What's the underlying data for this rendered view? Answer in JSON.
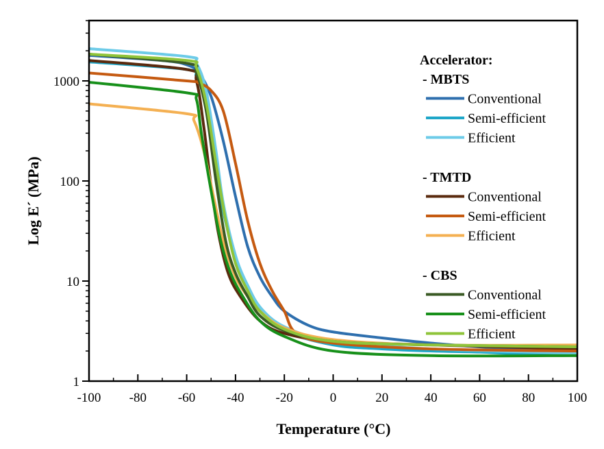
{
  "chart_data": {
    "type": "line",
    "title": "",
    "xlabel": "Temperature (°C)",
    "ylabel": "Log E´ (MPa)",
    "xlim": [
      -100,
      100
    ],
    "ylim": [
      1,
      4000
    ],
    "yscale": "log",
    "xticks": [
      -100,
      -80,
      -60,
      -40,
      -20,
      0,
      20,
      40,
      60,
      80,
      100
    ],
    "xtick_labels": [
      "-100",
      "-80",
      "-60",
      "-40",
      "-20",
      "0",
      "20",
      "40",
      "60",
      "80",
      "100"
    ],
    "yticks": [
      1,
      10,
      100,
      1000
    ],
    "ytick_labels": [
      "1",
      "10",
      "100",
      "1000"
    ],
    "grid": false,
    "legend_placement": "top-right",
    "legend_title": "Accelerator:",
    "groups": [
      {
        "label": "- MBTS",
        "series": [
          0,
          1,
          2
        ]
      },
      {
        "label": "- TMTD",
        "series": [
          3,
          4,
          5
        ]
      },
      {
        "label": "- CBS",
        "series": [
          6,
          7,
          8
        ]
      }
    ],
    "series": [
      {
        "name": "Conventional",
        "group": "MBTS",
        "color": "#2e6fae",
        "points": [
          [
            -100,
            1800
          ],
          [
            -70,
            1600
          ],
          [
            -60,
            1450
          ],
          [
            -55,
            1200
          ],
          [
            -50,
            700
          ],
          [
            -45,
            250
          ],
          [
            -40,
            70
          ],
          [
            -35,
            22
          ],
          [
            -30,
            11
          ],
          [
            -25,
            7
          ],
          [
            -20,
            5
          ],
          [
            -10,
            3.6
          ],
          [
            0,
            3.1
          ],
          [
            20,
            2.7
          ],
          [
            40,
            2.4
          ],
          [
            60,
            2.2
          ],
          [
            80,
            2.1
          ],
          [
            100,
            2.0
          ]
        ]
      },
      {
        "name": "Semi-efficient",
        "group": "MBTS",
        "color": "#1ea6c8",
        "points": [
          [
            -100,
            1550
          ],
          [
            -60,
            1300
          ],
          [
            -56,
            1100
          ],
          [
            -52,
            600
          ],
          [
            -48,
            150
          ],
          [
            -45,
            50
          ],
          [
            -40,
            17
          ],
          [
            -35,
            9
          ],
          [
            -30,
            5.5
          ],
          [
            -20,
            3.2
          ],
          [
            0,
            2.3
          ],
          [
            20,
            2.1
          ],
          [
            40,
            2.0
          ],
          [
            60,
            1.95
          ],
          [
            80,
            1.85
          ],
          [
            100,
            1.8
          ]
        ]
      },
      {
        "name": "Efficient",
        "group": "MBTS",
        "color": "#6dcbe8",
        "points": [
          [
            -100,
            2100
          ],
          [
            -60,
            1750
          ],
          [
            -56,
            1500
          ],
          [
            -52,
            800
          ],
          [
            -48,
            200
          ],
          [
            -45,
            60
          ],
          [
            -40,
            18
          ],
          [
            -35,
            9
          ],
          [
            -30,
            5.5
          ],
          [
            -20,
            3.5
          ],
          [
            0,
            2.5
          ],
          [
            40,
            2.1
          ],
          [
            100,
            1.9
          ]
        ]
      },
      {
        "name": "Conventional",
        "group": "TMTD",
        "color": "#5a2a0e",
        "points": [
          [
            -100,
            1600
          ],
          [
            -60,
            1300
          ],
          [
            -56,
            1000
          ],
          [
            -53,
            350
          ],
          [
            -50,
            90
          ],
          [
            -47,
            30
          ],
          [
            -43,
            12
          ],
          [
            -38,
            7
          ],
          [
            -30,
            4
          ],
          [
            -20,
            3
          ],
          [
            0,
            2.5
          ],
          [
            40,
            2.3
          ],
          [
            100,
            2.1
          ]
        ]
      },
      {
        "name": "Semi-efficient",
        "group": "TMTD",
        "color": "#c55a11",
        "points": [
          [
            -100,
            1200
          ],
          [
            -60,
            1000
          ],
          [
            -55,
            950
          ],
          [
            -50,
            800
          ],
          [
            -45,
            500
          ],
          [
            -40,
            150
          ],
          [
            -35,
            40
          ],
          [
            -30,
            15
          ],
          [
            -25,
            8
          ],
          [
            -20,
            5
          ],
          [
            -15,
            3
          ],
          [
            0,
            2.4
          ],
          [
            40,
            2.1
          ],
          [
            100,
            2.0
          ]
        ]
      },
      {
        "name": "Efficient",
        "group": "TMTD",
        "color": "#f4b052",
        "points": [
          [
            -100,
            590
          ],
          [
            -60,
            470
          ],
          [
            -57,
            400
          ],
          [
            -53,
            200
          ],
          [
            -49,
            70
          ],
          [
            -45,
            25
          ],
          [
            -40,
            11
          ],
          [
            -35,
            7
          ],
          [
            -30,
            5
          ],
          [
            -20,
            3.4
          ],
          [
            0,
            2.6
          ],
          [
            40,
            2.3
          ],
          [
            100,
            2.3
          ]
        ]
      },
      {
        "name": "Conventional",
        "group": "CBS",
        "color": "#3a5a24",
        "points": [
          [
            -100,
            1850
          ],
          [
            -60,
            1500
          ],
          [
            -56,
            1200
          ],
          [
            -52,
            500
          ],
          [
            -48,
            100
          ],
          [
            -44,
            25
          ],
          [
            -40,
            12
          ],
          [
            -35,
            7
          ],
          [
            -30,
            4.5
          ],
          [
            -20,
            3.2
          ],
          [
            0,
            2.5
          ],
          [
            40,
            2.3
          ],
          [
            100,
            2.2
          ]
        ]
      },
      {
        "name": "Semi-efficient",
        "group": "CBS",
        "color": "#17901a",
        "points": [
          [
            -100,
            970
          ],
          [
            -60,
            760
          ],
          [
            -56,
            650
          ],
          [
            -54,
            300
          ],
          [
            -50,
            80
          ],
          [
            -46,
            25
          ],
          [
            -42,
            12
          ],
          [
            -37,
            7
          ],
          [
            -30,
            4
          ],
          [
            -20,
            2.8
          ],
          [
            0,
            2.0
          ],
          [
            40,
            1.8
          ],
          [
            100,
            1.8
          ]
        ]
      },
      {
        "name": "Efficient",
        "group": "CBS",
        "color": "#8fc43a",
        "points": [
          [
            -100,
            1850
          ],
          [
            -60,
            1600
          ],
          [
            -56,
            1350
          ],
          [
            -52,
            600
          ],
          [
            -48,
            150
          ],
          [
            -44,
            40
          ],
          [
            -40,
            15
          ],
          [
            -35,
            8
          ],
          [
            -30,
            5
          ],
          [
            -20,
            3.3
          ],
          [
            0,
            2.5
          ],
          [
            40,
            2.3
          ],
          [
            100,
            2.2
          ]
        ]
      }
    ]
  }
}
